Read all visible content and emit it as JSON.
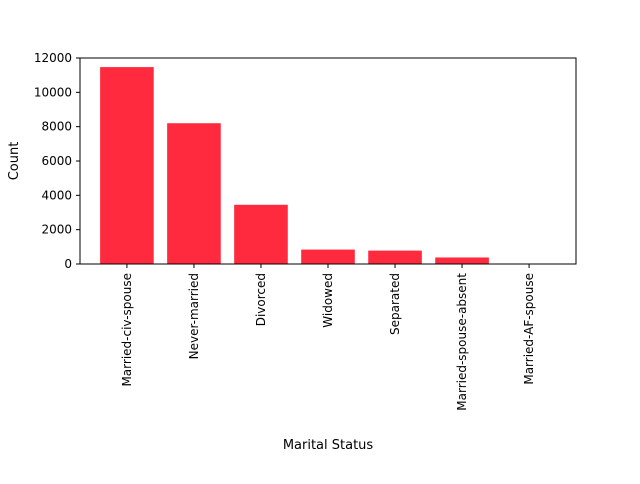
{
  "chart_data": {
    "type": "bar",
    "title": "",
    "xlabel": "Marital Status",
    "ylabel": "Count",
    "categories": [
      "Married-civ-spouse",
      "Never-married",
      "Divorced",
      "Widowed",
      "Separated",
      "Married-spouse-absent",
      "Married-AF-spouse"
    ],
    "values": [
      11470,
      8200,
      3450,
      840,
      780,
      380,
      20
    ],
    "ylim": [
      0,
      12000
    ],
    "yticks": [
      0,
      2000,
      4000,
      6000,
      8000,
      10000,
      12000
    ],
    "bar_color": "#ff2a3d",
    "grid": false,
    "legend": "none"
  }
}
